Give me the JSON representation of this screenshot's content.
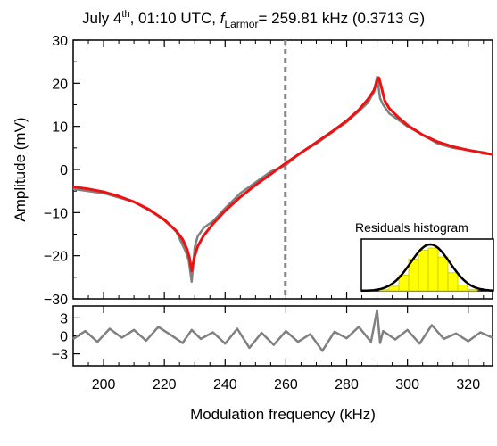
{
  "title": {
    "prefix": "July 4",
    "prefix_sup": "th",
    "middle": ", 01:10 UTC, ",
    "f_symbol": "f",
    "f_subscript": "Larmor",
    "suffix": "= 259.81 kHz (0.3713 G)"
  },
  "chart_data": [
    {
      "type": "line",
      "panel": "main",
      "xlabel": "Modulation frequency (kHz)",
      "ylabel": "Amplitude (mV)",
      "xlim": [
        190,
        328
      ],
      "ylim": [
        -30,
        30
      ],
      "x_ticks": [
        200,
        220,
        240,
        260,
        280,
        300,
        320
      ],
      "y_ticks": [
        30,
        20,
        10,
        0,
        -10,
        -20,
        -30
      ],
      "vertical_marker": {
        "x": 259.81,
        "style": "dashed",
        "color": "#888888"
      },
      "series": [
        {
          "kind": "measured",
          "color": "#808080",
          "x": [
            190,
            195,
            200,
            205,
            210,
            215,
            220,
            224,
            227,
            228,
            229,
            230,
            231,
            233,
            236,
            240,
            245,
            250,
            255,
            260,
            265,
            270,
            275,
            280,
            284,
            287,
            289,
            290,
            291,
            292,
            294,
            297,
            300,
            305,
            310,
            315,
            320,
            325,
            328
          ],
          "y": [
            -4.5,
            -5,
            -5.5,
            -6.5,
            -7.5,
            -9.5,
            -11.5,
            -14.5,
            -19,
            -21,
            -26,
            -18,
            -15.5,
            -13.5,
            -12,
            -9,
            -5.5,
            -3,
            -0.5,
            1,
            4,
            6,
            8.5,
            11,
            13.5,
            15.5,
            18,
            21.5,
            16.5,
            15,
            13,
            11.5,
            10,
            8,
            6,
            5,
            4.5,
            4,
            3.5
          ]
        },
        {
          "kind": "fit",
          "color": "#ee1111",
          "x": [
            190,
            195,
            200,
            205,
            210,
            215,
            220,
            224,
            226,
            227.5,
            228.3,
            229,
            229.8,
            231,
            233,
            236,
            240,
            245,
            250,
            255,
            260,
            265,
            270,
            275,
            280,
            284,
            287,
            289,
            290,
            290.6,
            291.3,
            292.5,
            294,
            297,
            300,
            305,
            310,
            315,
            320,
            325,
            328
          ],
          "y": [
            -4,
            -4.5,
            -5.2,
            -6.2,
            -7.5,
            -9.3,
            -11.7,
            -14.3,
            -16.2,
            -18.5,
            -20.5,
            -23.5,
            -20.5,
            -17.8,
            -15.3,
            -12.6,
            -9.6,
            -6.4,
            -3.6,
            -1.1,
            1.5,
            3.9,
            6.3,
            8.7,
            11.3,
            13.8,
            16.3,
            18.4,
            20.6,
            21.3,
            19.5,
            16,
            14.2,
            12.1,
            10.3,
            8,
            6.4,
            5.3,
            4.5,
            3.8,
            3.5
          ]
        }
      ]
    },
    {
      "type": "line",
      "panel": "residuals",
      "xlim": [
        190,
        328
      ],
      "ylim": [
        -5,
        5
      ],
      "y_ticks": [
        3,
        0,
        -3
      ],
      "series": [
        {
          "kind": "residual",
          "color": "#808080",
          "x": [
            190,
            194,
            198,
            202,
            206,
            210,
            214,
            218,
            222,
            226,
            229,
            232,
            236,
            240,
            244,
            248,
            252,
            256,
            260,
            264,
            268,
            272,
            276,
            280,
            284,
            288,
            290,
            291,
            292,
            296,
            300,
            304,
            308,
            312,
            316,
            320,
            324,
            328
          ],
          "y": [
            -0.5,
            0.8,
            -1,
            1.2,
            -0.3,
            1,
            -0.8,
            1.5,
            0.2,
            -1.2,
            1,
            -0.5,
            0.6,
            -1.3,
            1.2,
            -2,
            0.5,
            -1.5,
            0.8,
            -1,
            0.3,
            -2.5,
            0.7,
            -0.4,
            1.5,
            -1,
            4.3,
            -1.2,
            0.8,
            -0.6,
            1,
            -1.3,
            1.8,
            -0.5,
            0.4,
            -0.9,
            0.6,
            -0.3
          ]
        }
      ]
    },
    {
      "type": "bar",
      "panel": "inset",
      "title": "Residuals histogram",
      "values": [
        1,
        4,
        14,
        28,
        36,
        38,
        30,
        16,
        5,
        1
      ],
      "fit_curve": "gaussian",
      "bar_color": "#ffff00",
      "bar_stroke": "#c8c800"
    }
  ]
}
